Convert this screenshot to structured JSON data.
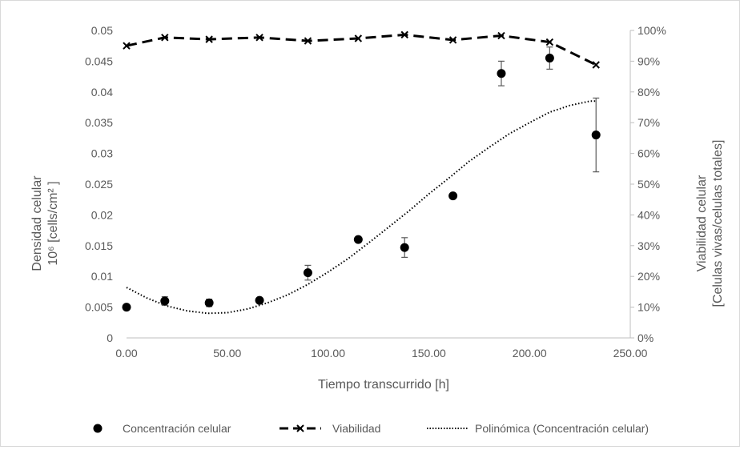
{
  "chart_data": {
    "type": "scatter",
    "title": "",
    "xlabel": "Tiempo transcurrido [h]",
    "ylabel_left": {
      "line1": "Densidad celular",
      "line2": "10⁶ [cells/cm² ]"
    },
    "ylabel_right": {
      "line1": "Viabilidad celular",
      "line2": "[Celulas vivas/celulas totales]"
    },
    "xlim": [
      0,
      250
    ],
    "ylim_left": [
      0,
      0.05
    ],
    "ylim_right": [
      0,
      1
    ],
    "x_ticks": [
      "0.00",
      "50.00",
      "100.00",
      "150.00",
      "200.00",
      "250.00"
    ],
    "x_tick_values": [
      0,
      50,
      100,
      150,
      200,
      250
    ],
    "y_left_ticks": [
      "0",
      "0.005",
      "0.01",
      "0.015",
      "0.02",
      "0.025",
      "0.03",
      "0.035",
      "0.04",
      "0.045",
      "0.05"
    ],
    "y_left_tick_values": [
      0,
      0.005,
      0.01,
      0.015,
      0.02,
      0.025,
      0.03,
      0.035,
      0.04,
      0.045,
      0.05
    ],
    "y_right_ticks": [
      "0%",
      "10%",
      "20%",
      "30%",
      "40%",
      "50%",
      "60%",
      "70%",
      "80%",
      "90%",
      "100%"
    ],
    "y_right_tick_values": [
      0,
      0.1,
      0.2,
      0.3,
      0.4,
      0.5,
      0.6,
      0.7,
      0.8,
      0.9,
      1.0
    ],
    "grid": false,
    "legend_position": "bottom",
    "series": [
      {
        "name": "Concentración celular",
        "kind": "scatter",
        "axis": "left",
        "color": "#000000",
        "x": [
          0,
          19,
          41,
          66,
          90,
          115,
          138,
          162,
          186,
          210,
          233
        ],
        "y": [
          0.005,
          0.006,
          0.0057,
          0.0061,
          0.0106,
          0.016,
          0.0147,
          0.0231,
          0.043,
          0.0455,
          0.033
        ],
        "error": [
          0,
          0.0007,
          0.0006,
          0.0004,
          0.0012,
          0.0003,
          0.0016,
          0.0002,
          0.002,
          0.0018,
          0.006
        ]
      },
      {
        "name": "Viabilidad",
        "kind": "line",
        "axis": "right",
        "color": "#000000",
        "x": [
          0,
          19,
          41,
          66,
          90,
          115,
          138,
          162,
          186,
          210,
          233
        ],
        "y": [
          0.95,
          0.977,
          0.971,
          0.977,
          0.966,
          0.974,
          0.986,
          0.969,
          0.983,
          0.962,
          0.888
        ]
      },
      {
        "name": "Polinómica (Concentración celular)",
        "kind": "trendline",
        "axis": "left",
        "color": "#000000",
        "x": [
          0,
          10,
          20,
          30,
          40,
          50,
          60,
          70,
          80,
          90,
          100,
          110,
          120,
          130,
          140,
          150,
          160,
          170,
          180,
          190,
          200,
          210,
          220,
          230,
          233
        ],
        "y": [
          0.0082,
          0.0065,
          0.0052,
          0.0044,
          0.004,
          0.0041,
          0.0047,
          0.0057,
          0.007,
          0.0087,
          0.0107,
          0.0129,
          0.0154,
          0.018,
          0.0206,
          0.0234,
          0.026,
          0.0287,
          0.031,
          0.0332,
          0.035,
          0.0367,
          0.0378,
          0.0385,
          0.0385
        ]
      }
    ]
  }
}
